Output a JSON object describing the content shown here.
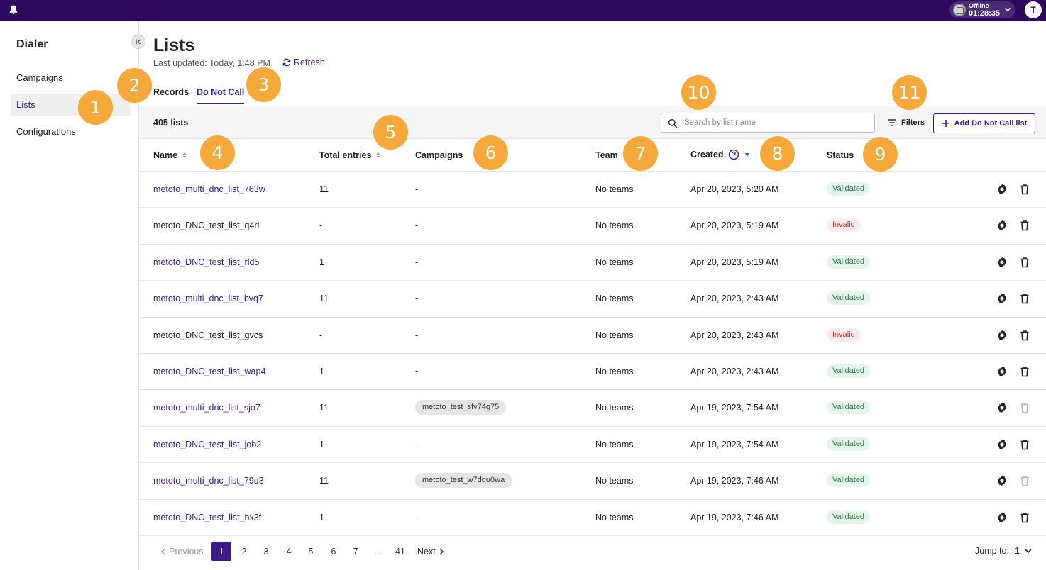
{
  "topbar": {
    "status_label": "Offline",
    "status_timer": "01:28:35",
    "avatar_initial": "T"
  },
  "sidebar": {
    "title": "Dialer",
    "items": [
      {
        "label": "Campaigns"
      },
      {
        "label": "Lists"
      },
      {
        "label": "Configurations"
      }
    ]
  },
  "page": {
    "title": "Lists",
    "last_updated": "Last updated: Today, 1:48 PM",
    "refresh_label": "Refresh",
    "tabs": [
      {
        "label": "Records"
      },
      {
        "label": "Do Not Call"
      }
    ]
  },
  "toolbar": {
    "count": "405 lists",
    "search_placeholder": "Search by list name",
    "filters_label": "Filters",
    "add_label": "Add Do Not Call list"
  },
  "table": {
    "headers": {
      "name": "Name",
      "entries": "Total entries",
      "campaigns": "Campaigns",
      "team": "Team",
      "created": "Created",
      "status": "Status"
    },
    "rows": [
      {
        "name": "metoto_multi_dnc_list_763w",
        "entries": "11",
        "campaign": "-",
        "team": "No teams",
        "created": "Apr 20, 2023, 5:20 AM",
        "status": "Validated"
      },
      {
        "name": "metoto_DNC_test_list_q4ri",
        "entries": "-",
        "campaign": "-",
        "team": "No teams",
        "created": "Apr 20, 2023, 5:19 AM",
        "status": "Invalid"
      },
      {
        "name": "metoto_DNC_test_list_rld5",
        "entries": "1",
        "campaign": "-",
        "team": "No teams",
        "created": "Apr 20, 2023, 5:19 AM",
        "status": "Validated"
      },
      {
        "name": "metoto_multi_dnc_list_bvq7",
        "entries": "11",
        "campaign": "-",
        "team": "No teams",
        "created": "Apr 20, 2023, 2:43 AM",
        "status": "Validated"
      },
      {
        "name": "metoto_DNC_test_list_gvcs",
        "entries": "-",
        "campaign": "-",
        "team": "No teams",
        "created": "Apr 20, 2023, 2:43 AM",
        "status": "Invalid"
      },
      {
        "name": "metoto_DNC_test_list_wap4",
        "entries": "1",
        "campaign": "-",
        "team": "No teams",
        "created": "Apr 20, 2023, 2:43 AM",
        "status": "Validated"
      },
      {
        "name": "metoto_multi_dnc_list_sjo7",
        "entries": "11",
        "campaign": "metoto_test_sfv74g75",
        "team": "No teams",
        "created": "Apr 19, 2023, 7:54 AM",
        "status": "Validated"
      },
      {
        "name": "metoto_DNC_test_list_job2",
        "entries": "1",
        "campaign": "-",
        "team": "No teams",
        "created": "Apr 19, 2023, 7:54 AM",
        "status": "Validated"
      },
      {
        "name": "metoto_multi_dnc_list_79q3",
        "entries": "11",
        "campaign": "metoto_test_w7dqu0wa",
        "team": "No teams",
        "created": "Apr 19, 2023, 7:46 AM",
        "status": "Validated"
      },
      {
        "name": "metoto_DNC_test_list_hx3f",
        "entries": "1",
        "campaign": "-",
        "team": "No teams",
        "created": "Apr 19, 2023, 7:46 AM",
        "status": "Validated"
      }
    ]
  },
  "pagination": {
    "previous": "Previous",
    "pages": [
      "1",
      "2",
      "3",
      "4",
      "5",
      "6",
      "7",
      "...",
      "41"
    ],
    "next": "Next",
    "jump_label": "Jump to:",
    "jump_value": "1"
  },
  "markers": [
    "1",
    "2",
    "3",
    "4",
    "5",
    "6",
    "7",
    "8",
    "9",
    "10",
    "11"
  ],
  "colors": {
    "brand": "#2d0a5e",
    "accent": "#3b1b8a",
    "marker": "#f5a93a",
    "validated": "#2e7d4f",
    "invalid": "#c0392b"
  }
}
